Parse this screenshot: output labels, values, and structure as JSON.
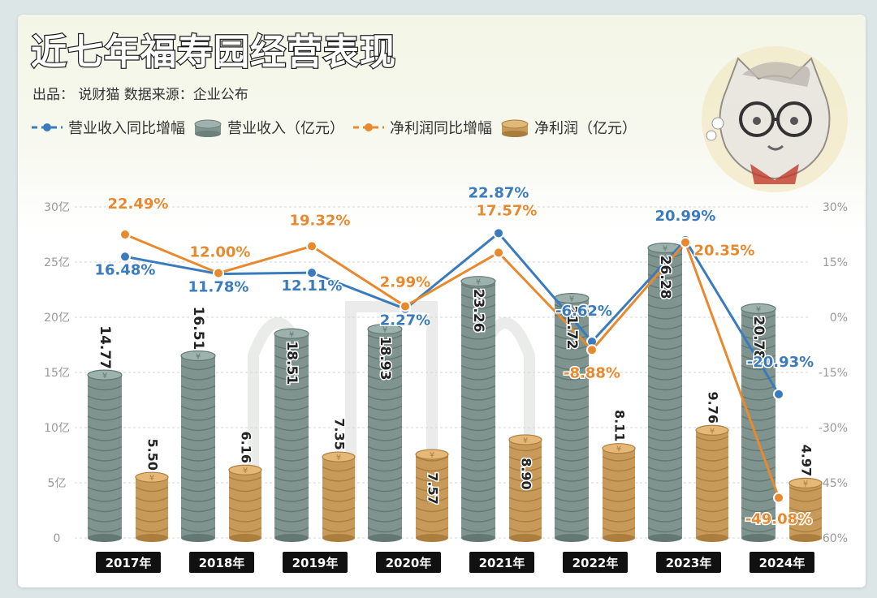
{
  "title": "近七年福寿园经营表现",
  "subtitle": "出品： 说财猫  数据来源：企业公布",
  "legend": [
    {
      "key": "rev_growth",
      "label": "营业收入同比增幅",
      "kind": "line",
      "color": "#3a7bbd"
    },
    {
      "key": "revenue",
      "label": "营业收入（亿元）",
      "kind": "bar",
      "color": "#7f948f"
    },
    {
      "key": "profit_growth",
      "label": "净利润同比增幅",
      "kind": "line",
      "color": "#e9892e"
    },
    {
      "key": "profit",
      "label": "净利润（亿元）",
      "kind": "bar",
      "color": "#c79a5a"
    }
  ],
  "chart_data": {
    "type": "bar",
    "categories": [
      "2017年",
      "2018年",
      "2019年",
      "2020年",
      "2021年",
      "2022年",
      "2023年",
      "2024年"
    ],
    "series": [
      {
        "name": "营业收入（亿元）",
        "axis": "left",
        "kind": "bar",
        "color": "#7f948f",
        "values": [
          14.77,
          16.51,
          18.51,
          18.93,
          23.26,
          21.72,
          26.28,
          20.78
        ],
        "labels": [
          "14.77",
          "16.51",
          "18.51",
          "18.93",
          "23.26",
          "21.72",
          "26.28",
          "20.78"
        ]
      },
      {
        "name": "净利润（亿元）",
        "axis": "left",
        "kind": "bar",
        "color": "#c79a5a",
        "values": [
          5.5,
          6.16,
          7.35,
          7.57,
          8.9,
          8.11,
          9.76,
          4.97
        ],
        "labels": [
          "5.50",
          "6.16",
          "7.35",
          "7.57",
          "8.90",
          "8.11",
          "9.76",
          "4.97"
        ]
      },
      {
        "name": "营业收入同比增幅",
        "axis": "right",
        "kind": "line",
        "color": "#3a7bbd",
        "values": [
          16.48,
          11.78,
          12.11,
          2.27,
          22.87,
          -6.62,
          20.99,
          -20.93
        ],
        "labels": [
          "16.48%",
          "11.78%",
          "12.11%",
          "2.27%",
          "22.87%",
          "-6.62%",
          "20.99%",
          "-20.93%"
        ]
      },
      {
        "name": "净利润同比增幅",
        "axis": "right",
        "kind": "line",
        "color": "#e9892e",
        "values": [
          22.49,
          12.0,
          19.32,
          2.99,
          17.57,
          -8.88,
          20.35,
          -49.08
        ],
        "labels": [
          "22.49%",
          "12.00%",
          "19.32%",
          "2.99%",
          "17.57%",
          "-8.88%",
          "20.35%",
          "-49.08%"
        ]
      }
    ],
    "y_left": {
      "min": 0,
      "max": 30,
      "ticks": [
        0,
        5,
        10,
        15,
        20,
        25,
        30
      ],
      "tick_labels": [
        "0",
        "5亿",
        "10亿",
        "15亿",
        "20亿",
        "25亿",
        "30亿"
      ]
    },
    "y_right": {
      "min": -60,
      "max": 30,
      "ticks": [
        -60,
        -45,
        -30,
        -15,
        0,
        15,
        30
      ],
      "tick_labels": [
        "-60%",
        "-45%",
        "-30%",
        "-15%",
        "0%",
        "15%",
        "30%"
      ]
    },
    "grid": true,
    "legend_position": "top-left"
  }
}
